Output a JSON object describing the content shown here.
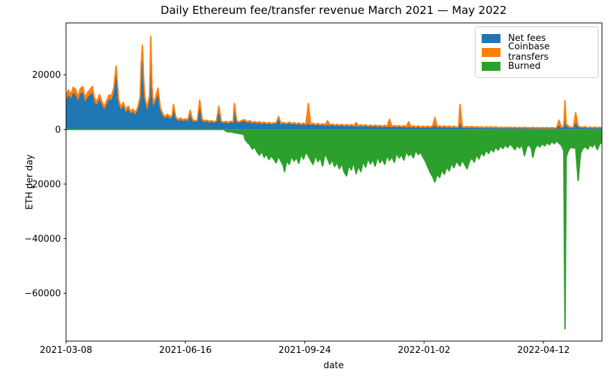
{
  "chart_data": {
    "type": "area",
    "title": "Daily Ethereum fee/transfer revenue March 2021 — May 2022",
    "xlabel": "date",
    "ylabel": "ETH per day",
    "stacking": "Net fees and Coinbase transfers stacked above zero; Burned plotted below zero",
    "x_unit": "days since 2021-03-08",
    "xlim": [
      0,
      449
    ],
    "ylim": [
      -77500,
      39000
    ],
    "grid": false,
    "x_ticks": [
      {
        "day": 0,
        "label": "2021-03-08"
      },
      {
        "day": 100,
        "label": "2021-06-16"
      },
      {
        "day": 200,
        "label": "2021-09-24"
      },
      {
        "day": 300,
        "label": "2022-01-02"
      },
      {
        "day": 400,
        "label": "2022-04-12"
      }
    ],
    "y_ticks": [
      {
        "value": 20000,
        "label": "20000"
      },
      {
        "value": 0,
        "label": "0"
      },
      {
        "value": -20000,
        "label": "−20000"
      },
      {
        "value": -40000,
        "label": "−40000"
      },
      {
        "value": -60000,
        "label": "−60000"
      }
    ],
    "legend": {
      "position": "upper right",
      "entries": [
        {
          "label": "Net fees",
          "color": "#1f77b4"
        },
        {
          "label": "Coinbase transfers",
          "color": "#ff7f0e"
        },
        {
          "label": "Burned",
          "color": "#2ca02c"
        }
      ]
    },
    "series_names": [
      "Net fees",
      "Coinbase transfers",
      "Burned"
    ],
    "point_format": [
      "day",
      "net_fees",
      "coinbase_transfers",
      "burned"
    ],
    "points": [
      [
        0,
        10500,
        1700,
        0
      ],
      [
        2,
        12600,
        1900,
        0
      ],
      [
        4,
        11300,
        1600,
        0
      ],
      [
        6,
        13400,
        2000,
        0
      ],
      [
        8,
        12800,
        1900,
        0
      ],
      [
        10,
        10400,
        1500,
        0
      ],
      [
        12,
        13100,
        1900,
        0
      ],
      [
        14,
        13600,
        2100,
        0
      ],
      [
        16,
        10100,
        1400,
        0
      ],
      [
        18,
        11800,
        1700,
        0
      ],
      [
        20,
        12600,
        1900,
        0
      ],
      [
        22,
        13500,
        2200,
        0
      ],
      [
        24,
        9800,
        1400,
        0
      ],
      [
        26,
        9100,
        1300,
        0
      ],
      [
        28,
        11200,
        1600,
        0
      ],
      [
        30,
        9000,
        1300,
        0
      ],
      [
        32,
        7300,
        1000,
        0
      ],
      [
        34,
        9200,
        1300,
        0
      ],
      [
        36,
        11000,
        1600,
        0
      ],
      [
        38,
        10900,
        1500,
        0
      ],
      [
        40,
        13200,
        1900,
        0
      ],
      [
        42,
        20300,
        2900,
        0
      ],
      [
        44,
        9500,
        1400,
        0
      ],
      [
        46,
        7300,
        1000,
        0
      ],
      [
        48,
        8700,
        1200,
        0
      ],
      [
        50,
        6200,
        900,
        0
      ],
      [
        52,
        7500,
        1100,
        0
      ],
      [
        54,
        5900,
        800,
        0
      ],
      [
        56,
        6500,
        900,
        0
      ],
      [
        58,
        5400,
        800,
        0
      ],
      [
        60,
        6900,
        1000,
        0
      ],
      [
        62,
        10200,
        1500,
        0
      ],
      [
        63,
        21500,
        2600,
        0
      ],
      [
        64,
        27800,
        3000,
        0
      ],
      [
        65,
        16500,
        2200,
        0
      ],
      [
        66,
        10500,
        1500,
        0
      ],
      [
        68,
        7100,
        1000,
        0
      ],
      [
        70,
        10900,
        1600,
        0
      ],
      [
        71,
        22400,
        11700,
        0
      ],
      [
        72,
        13800,
        2100,
        0
      ],
      [
        73,
        8600,
        1200,
        0
      ],
      [
        75,
        10200,
        1500,
        0
      ],
      [
        77,
        13000,
        2200,
        0
      ],
      [
        79,
        6900,
        1000,
        0
      ],
      [
        81,
        5000,
        700,
        0
      ],
      [
        83,
        4100,
        600,
        0
      ],
      [
        85,
        4900,
        700,
        0
      ],
      [
        87,
        3900,
        600,
        0
      ],
      [
        89,
        4500,
        700,
        0
      ],
      [
        90,
        8100,
        1100,
        0
      ],
      [
        92,
        3900,
        600,
        0
      ],
      [
        94,
        3100,
        500,
        0
      ],
      [
        96,
        3600,
        600,
        0
      ],
      [
        98,
        3000,
        500,
        0
      ],
      [
        100,
        3400,
        500,
        0
      ],
      [
        102,
        3000,
        500,
        0
      ],
      [
        104,
        5200,
        1800,
        0
      ],
      [
        106,
        3100,
        500,
        0
      ],
      [
        108,
        2800,
        400,
        0
      ],
      [
        110,
        2900,
        500,
        0
      ],
      [
        112,
        7900,
        2800,
        0
      ],
      [
        114,
        3200,
        500,
        0
      ],
      [
        116,
        2700,
        400,
        0
      ],
      [
        118,
        2900,
        500,
        0
      ],
      [
        120,
        2500,
        400,
        0
      ],
      [
        122,
        2800,
        400,
        0
      ],
      [
        124,
        2400,
        400,
        0
      ],
      [
        126,
        2700,
        400,
        0
      ],
      [
        128,
        6200,
        2300,
        0
      ],
      [
        130,
        2600,
        400,
        0
      ],
      [
        132,
        2300,
        400,
        0
      ],
      [
        134,
        2500,
        400,
        -600
      ],
      [
        136,
        2200,
        400,
        -900
      ],
      [
        138,
        2600,
        400,
        -800
      ],
      [
        140,
        2300,
        400,
        -1100
      ],
      [
        141,
        8000,
        1500,
        -1200
      ],
      [
        143,
        2700,
        400,
        -1300
      ],
      [
        145,
        2400,
        400,
        -1500
      ],
      [
        147,
        2800,
        400,
        -1600
      ],
      [
        149,
        3100,
        500,
        -1900
      ],
      [
        150,
        2900,
        500,
        -3600
      ],
      [
        152,
        2400,
        400,
        -4800
      ],
      [
        154,
        2700,
        500,
        -5600
      ],
      [
        156,
        2200,
        400,
        -7200
      ],
      [
        158,
        2500,
        400,
        -6400
      ],
      [
        160,
        2100,
        400,
        -8200
      ],
      [
        162,
        2400,
        400,
        -9400
      ],
      [
        164,
        2000,
        300,
        -8000
      ],
      [
        166,
        2300,
        400,
        -10200
      ],
      [
        168,
        1900,
        300,
        -9000
      ],
      [
        170,
        2200,
        400,
        -11000
      ],
      [
        172,
        1800,
        300,
        -9600
      ],
      [
        174,
        2100,
        400,
        -10800
      ],
      [
        176,
        2000,
        300,
        -12200
      ],
      [
        178,
        3900,
        800,
        -9800
      ],
      [
        180,
        1900,
        300,
        -11600
      ],
      [
        182,
        2200,
        400,
        -13200
      ],
      [
        183,
        2000,
        400,
        -15400
      ],
      [
        185,
        1900,
        300,
        -11400
      ],
      [
        187,
        2300,
        400,
        -12800
      ],
      [
        189,
        1800,
        300,
        -9700
      ],
      [
        191,
        2100,
        400,
        -11600
      ],
      [
        193,
        1700,
        300,
        -10200
      ],
      [
        195,
        2000,
        400,
        -12400
      ],
      [
        197,
        1600,
        300,
        -9000
      ],
      [
        199,
        1900,
        400,
        -10800
      ],
      [
        201,
        1500,
        300,
        -8200
      ],
      [
        203,
        2200,
        7300,
        -9600
      ],
      [
        205,
        1600,
        300,
        -11400
      ],
      [
        207,
        1900,
        400,
        -12800
      ],
      [
        209,
        1400,
        300,
        -9400
      ],
      [
        211,
        1800,
        400,
        -11800
      ],
      [
        213,
        1400,
        300,
        -10400
      ],
      [
        215,
        1700,
        400,
        -13400
      ],
      [
        217,
        1300,
        300,
        -8800
      ],
      [
        219,
        1600,
        1600,
        -10600
      ],
      [
        221,
        1300,
        300,
        -12800
      ],
      [
        223,
        1600,
        400,
        -11000
      ],
      [
        225,
        1200,
        300,
        -13600
      ],
      [
        227,
        1500,
        400,
        -12000
      ],
      [
        229,
        1200,
        300,
        -14400
      ],
      [
        231,
        1500,
        400,
        -12400
      ],
      [
        233,
        1100,
        300,
        -15600
      ],
      [
        235,
        1400,
        400,
        -17000
      ],
      [
        237,
        1100,
        300,
        -13000
      ],
      [
        239,
        1400,
        400,
        -14800
      ],
      [
        241,
        1000,
        300,
        -12000
      ],
      [
        243,
        1300,
        1200,
        -16200
      ],
      [
        245,
        1000,
        300,
        -13400
      ],
      [
        247,
        1300,
        400,
        -15400
      ],
      [
        249,
        1000,
        300,
        -11600
      ],
      [
        251,
        1300,
        400,
        -13800
      ],
      [
        253,
        900,
        300,
        -10600
      ],
      [
        255,
        1200,
        400,
        -12600
      ],
      [
        257,
        900,
        300,
        -11000
      ],
      [
        259,
        1200,
        400,
        -13400
      ],
      [
        261,
        900,
        300,
        -9800
      ],
      [
        263,
        1100,
        400,
        -12200
      ],
      [
        265,
        800,
        300,
        -10800
      ],
      [
        267,
        1100,
        400,
        -12800
      ],
      [
        269,
        800,
        300,
        -9400
      ],
      [
        271,
        1100,
        2600,
        -11400
      ],
      [
        273,
        800,
        300,
        -10000
      ],
      [
        275,
        1000,
        400,
        -12000
      ],
      [
        277,
        800,
        300,
        -8600
      ],
      [
        279,
        1000,
        400,
        -10400
      ],
      [
        281,
        700,
        300,
        -9200
      ],
      [
        283,
        1000,
        400,
        -11200
      ],
      [
        285,
        700,
        300,
        -8000
      ],
      [
        287,
        900,
        1900,
        -9600
      ],
      [
        289,
        700,
        300,
        -8800
      ],
      [
        291,
        900,
        400,
        -10400
      ],
      [
        293,
        600,
        300,
        -7600
      ],
      [
        295,
        900,
        400,
        -9200
      ],
      [
        297,
        600,
        300,
        -8400
      ],
      [
        299,
        800,
        400,
        -10000
      ],
      [
        301,
        600,
        300,
        -11600
      ],
      [
        303,
        800,
        400,
        -13600
      ],
      [
        305,
        600,
        300,
        -15600
      ],
      [
        307,
        800,
        400,
        -17200
      ],
      [
        309,
        1500,
        2900,
        -19200
      ],
      [
        311,
        700,
        300,
        -16400
      ],
      [
        313,
        900,
        400,
        -17600
      ],
      [
        315,
        600,
        300,
        -14800
      ],
      [
        317,
        900,
        400,
        -16400
      ],
      [
        319,
        600,
        300,
        -13600
      ],
      [
        321,
        800,
        400,
        -15200
      ],
      [
        323,
        600,
        300,
        -12400
      ],
      [
        325,
        800,
        400,
        -14000
      ],
      [
        327,
        500,
        300,
        -11600
      ],
      [
        329,
        700,
        400,
        -12800
      ],
      [
        330,
        2400,
        6800,
        -13400
      ],
      [
        332,
        700,
        300,
        -11200
      ],
      [
        334,
        500,
        300,
        -12800
      ],
      [
        336,
        700,
        400,
        -14400
      ],
      [
        338,
        500,
        300,
        -11600
      ],
      [
        340,
        700,
        400,
        -10400
      ],
      [
        342,
        500,
        300,
        -12000
      ],
      [
        344,
        600,
        400,
        -9200
      ],
      [
        346,
        500,
        300,
        -10800
      ],
      [
        348,
        600,
        400,
        -8400
      ],
      [
        350,
        400,
        300,
        -9600
      ],
      [
        352,
        600,
        400,
        -7600
      ],
      [
        354,
        400,
        300,
        -8800
      ],
      [
        356,
        600,
        400,
        -7000
      ],
      [
        358,
        400,
        300,
        -8200
      ],
      [
        360,
        600,
        400,
        -6400
      ],
      [
        362,
        400,
        300,
        -7600
      ],
      [
        364,
        500,
        300,
        -6000
      ],
      [
        366,
        400,
        300,
        -7000
      ],
      [
        368,
        500,
        300,
        -5600
      ],
      [
        370,
        400,
        300,
        -6600
      ],
      [
        372,
        500,
        300,
        -5200
      ],
      [
        374,
        400,
        200,
        -6200
      ],
      [
        376,
        500,
        300,
        -7400
      ],
      [
        378,
        400,
        200,
        -5800
      ],
      [
        380,
        500,
        300,
        -6800
      ],
      [
        382,
        400,
        200,
        -5400
      ],
      [
        384,
        500,
        300,
        -9600
      ],
      [
        386,
        400,
        200,
        -6400
      ],
      [
        388,
        400,
        300,
        -5600
      ],
      [
        390,
        300,
        200,
        -7200
      ],
      [
        391,
        500,
        300,
        -10200
      ],
      [
        393,
        300,
        200,
        -6800
      ],
      [
        395,
        400,
        300,
        -5600
      ],
      [
        397,
        300,
        200,
        -6400
      ],
      [
        399,
        400,
        300,
        -5200
      ],
      [
        401,
        300,
        200,
        -6000
      ],
      [
        403,
        400,
        300,
        -4800
      ],
      [
        405,
        300,
        200,
        -5600
      ],
      [
        407,
        400,
        300,
        -4400
      ],
      [
        409,
        300,
        200,
        -5200
      ],
      [
        411,
        400,
        200,
        -4200
      ],
      [
        413,
        1400,
        2000,
        -5000
      ],
      [
        415,
        400,
        300,
        -5800
      ],
      [
        417,
        800,
        500,
        -7800
      ],
      [
        418,
        3500,
        7000,
        -73000
      ],
      [
        419,
        1300,
        700,
        -10000
      ],
      [
        421,
        700,
        400,
        -7600
      ],
      [
        423,
        500,
        300,
        -6400
      ],
      [
        425,
        500,
        300,
        -6800
      ],
      [
        427,
        2400,
        3700,
        -6600
      ],
      [
        429,
        800,
        400,
        -18700
      ],
      [
        431,
        600,
        300,
        -8800
      ],
      [
        433,
        500,
        300,
        -7000
      ],
      [
        435,
        700,
        300,
        -6200
      ],
      [
        437,
        400,
        200,
        -7200
      ],
      [
        439,
        600,
        300,
        -5600
      ],
      [
        441,
        400,
        200,
        -6400
      ],
      [
        443,
        600,
        300,
        -5000
      ],
      [
        445,
        400,
        200,
        -7400
      ],
      [
        447,
        500,
        300,
        -5400
      ],
      [
        449,
        400,
        200,
        -4600
      ]
    ]
  }
}
